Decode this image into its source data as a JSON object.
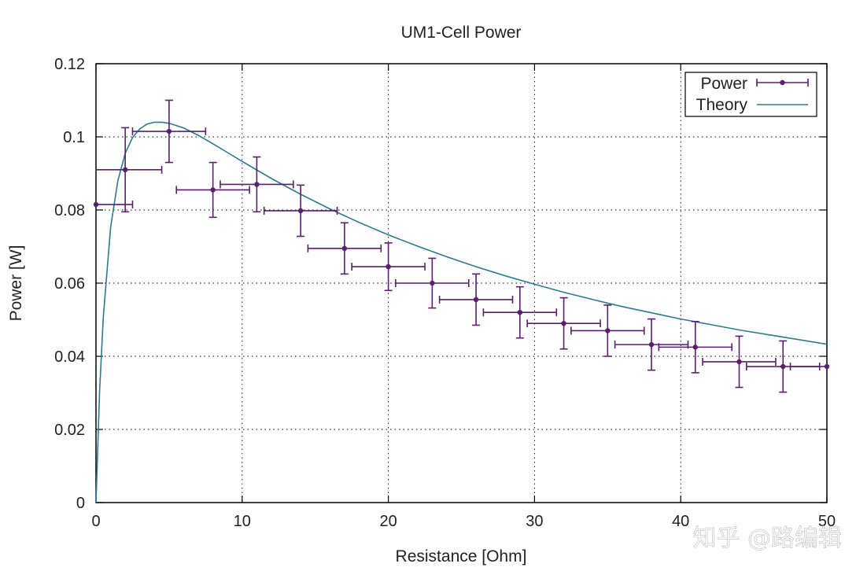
{
  "chart_data": {
    "type": "scatter",
    "title": "UM1-Cell Power",
    "xlabel": "Resistance [Ohm]",
    "ylabel": "Power [W]",
    "xlim": [
      0,
      50
    ],
    "ylim": [
      0,
      0.12
    ],
    "xticks": [
      "0",
      "10",
      "20",
      "30",
      "40",
      "50"
    ],
    "yticks": [
      "0",
      "0.02",
      "0.04",
      "0.06",
      "0.08",
      "0.1",
      "0.12"
    ],
    "grid": true,
    "legend_position": "top-right",
    "series": [
      {
        "name": "Power",
        "kind": "points-with-xy-errorbars",
        "color": "#5a1e6e",
        "points": [
          {
            "x": 0,
            "y": 0.0815,
            "xerr": 2.5,
            "yerr": 0.0
          },
          {
            "x": 2,
            "y": 0.091,
            "xerr": 2.5,
            "yerr": 0.0115
          },
          {
            "x": 5,
            "y": 0.1015,
            "xerr": 2.5,
            "yerr": 0.0085
          },
          {
            "x": 8,
            "y": 0.0855,
            "xerr": 2.5,
            "yerr": 0.0075
          },
          {
            "x": 11,
            "y": 0.087,
            "xerr": 2.5,
            "yerr": 0.0075
          },
          {
            "x": 14,
            "y": 0.0798,
            "xerr": 2.5,
            "yerr": 0.007
          },
          {
            "x": 17,
            "y": 0.0695,
            "xerr": 2.5,
            "yerr": 0.007
          },
          {
            "x": 20,
            "y": 0.0645,
            "xerr": 2.5,
            "yerr": 0.0065
          },
          {
            "x": 23,
            "y": 0.06,
            "xerr": 2.5,
            "yerr": 0.0068
          },
          {
            "x": 26,
            "y": 0.0555,
            "xerr": 2.5,
            "yerr": 0.007
          },
          {
            "x": 29,
            "y": 0.052,
            "xerr": 2.5,
            "yerr": 0.007
          },
          {
            "x": 32,
            "y": 0.049,
            "xerr": 2.5,
            "yerr": 0.007
          },
          {
            "x": 35,
            "y": 0.047,
            "xerr": 2.5,
            "yerr": 0.007
          },
          {
            "x": 38,
            "y": 0.0432,
            "xerr": 2.5,
            "yerr": 0.007
          },
          {
            "x": 41,
            "y": 0.0425,
            "xerr": 2.5,
            "yerr": 0.007
          },
          {
            "x": 44,
            "y": 0.0385,
            "xerr": 2.5,
            "yerr": 0.007
          },
          {
            "x": 47,
            "y": 0.0372,
            "xerr": 2.5,
            "yerr": 0.007
          },
          {
            "x": 50,
            "y": 0.0372,
            "xerr": 2.5,
            "yerr": 0.0
          }
        ]
      },
      {
        "name": "Theory",
        "kind": "line",
        "color": "#2c7a8c",
        "x": [
          0,
          0.25,
          0.5,
          1,
          1.5,
          2,
          2.5,
          3,
          3.5,
          4,
          4.5,
          5,
          5.5,
          6,
          7,
          8,
          9,
          10,
          12,
          14,
          16,
          18,
          20,
          22,
          24,
          26,
          28,
          30,
          32,
          34,
          36,
          38,
          40,
          42,
          44,
          46,
          48,
          50
        ],
        "y": [
          0,
          0.0305,
          0.0507,
          0.0753,
          0.0881,
          0.0955,
          0.0998,
          0.1022,
          0.1035,
          0.104,
          0.104,
          0.1037,
          0.1031,
          0.1024,
          0.1004,
          0.0981,
          0.0957,
          0.0933,
          0.0886,
          0.0843,
          0.0803,
          0.0766,
          0.0732,
          0.0701,
          0.0672,
          0.0645,
          0.062,
          0.0597,
          0.0575,
          0.0555,
          0.0536,
          0.0519,
          0.0502,
          0.0487,
          0.0472,
          0.0459,
          0.0446,
          0.0433
        ]
      }
    ]
  },
  "watermark": "知乎 @路编辑"
}
